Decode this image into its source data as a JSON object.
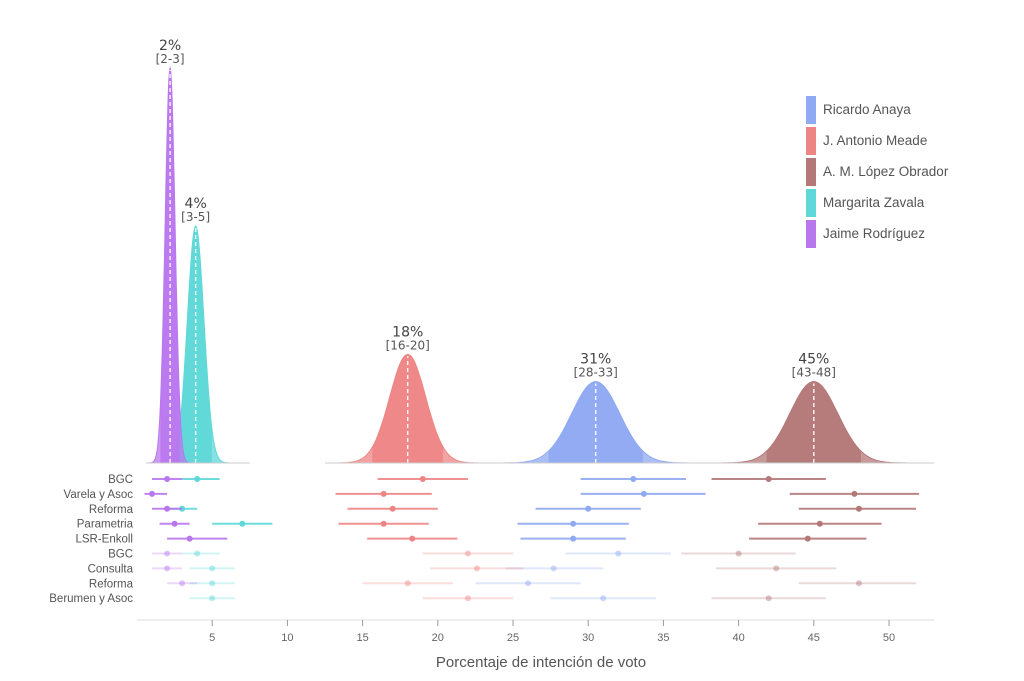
{
  "chart_data": {
    "type": "area",
    "xlabel": "Porcentaje de intención de voto",
    "xlim": [
      0,
      53
    ],
    "x_ticks": [
      5,
      10,
      15,
      20,
      25,
      30,
      35,
      40,
      45,
      50
    ],
    "candidates": [
      {
        "name": "Ricardo Anaya",
        "color": "#8fa9f2",
        "mean": 30.5,
        "sd": 1.6,
        "peak_label": "31%",
        "interval_label": "[28-33]",
        "interval": [
          28,
          33
        ]
      },
      {
        "name": "J. Antonio Meade",
        "color": "#ee8585",
        "mean": 18,
        "sd": 1.2,
        "peak_label": "18%",
        "interval_label": "[16-20]",
        "interval": [
          16,
          20
        ]
      },
      {
        "name": "A. M. López Obrador",
        "color": "#b47878",
        "mean": 45,
        "sd": 1.6,
        "peak_label": "45%",
        "interval_label": "[43-48]",
        "interval": [
          43,
          48
        ]
      },
      {
        "name": "Margarita Zavala",
        "color": "#5ed8d8",
        "mean": 3.9,
        "sd": 0.55,
        "peak_label": "4%",
        "interval_label": "[3-5]",
        "interval": [
          3,
          5
        ]
      },
      {
        "name": "Jaime Rodríguez",
        "color": "#b977ee",
        "mean": 2.2,
        "sd": 0.33,
        "peak_label": "2%",
        "interval_label": "[2-3]",
        "interval": [
          2,
          3
        ]
      }
    ],
    "polls": [
      {
        "name": "BGC",
        "faded": false,
        "estimates": {
          "Ricardo Anaya": [
            29.5,
            33,
            36.5
          ],
          "J. Antonio Meade": [
            16,
            19,
            22
          ],
          "A. M. López Obrador": [
            38.2,
            42,
            45.8
          ],
          "Margarita Zavala": [
            3,
            4,
            5.5
          ],
          "Jaime Rodríguez": [
            1,
            2,
            3
          ]
        }
      },
      {
        "name": "Varela y Asoc",
        "faded": false,
        "estimates": {
          "Ricardo Anaya": [
            29.5,
            33.7,
            37.8
          ],
          "J. Antonio Meade": [
            13.2,
            16.4,
            19.6
          ],
          "A. M. López Obrador": [
            43.4,
            47.7,
            52
          ],
          "Margarita Zavala": [],
          "Jaime Rodríguez": [
            0.5,
            1,
            2
          ]
        }
      },
      {
        "name": "Reforma",
        "faded": false,
        "estimates": {
          "Ricardo Anaya": [
            26.5,
            30,
            33.5
          ],
          "J. Antonio Meade": [
            14,
            17,
            20
          ],
          "A. M. López Obrador": [
            44,
            48,
            51.8
          ],
          "Margarita Zavala": [
            2,
            3,
            4
          ],
          "Jaime Rodríguez": [
            1,
            2,
            3
          ]
        }
      },
      {
        "name": "Parametria",
        "faded": false,
        "estimates": {
          "Ricardo Anaya": [
            25.3,
            29,
            32.7
          ],
          "J. Antonio Meade": [
            13.4,
            16.4,
            19.4
          ],
          "A. M. López Obrador": [
            41.3,
            45.4,
            49.5
          ],
          "Margarita Zavala": [
            5,
            7,
            9
          ],
          "Jaime Rodríguez": [
            1.5,
            2.5,
            3.5
          ]
        }
      },
      {
        "name": "LSR-Enkoll",
        "faded": false,
        "estimates": {
          "Ricardo Anaya": [
            25.5,
            29,
            32.5
          ],
          "J. Antonio Meade": [
            15.3,
            18.3,
            21.3
          ],
          "A. M. López Obrador": [
            40.7,
            44.6,
            48.5
          ],
          "Margarita Zavala": [],
          "Jaime Rodríguez": [
            2,
            3.5,
            6
          ]
        }
      },
      {
        "name": "BGC",
        "faded": true,
        "estimates": {
          "Ricardo Anaya": [
            28.5,
            32,
            35.5
          ],
          "J. Antonio Meade": [
            19,
            22,
            25
          ],
          "A. M. López Obrador": [
            36.2,
            40,
            43.8
          ],
          "Margarita Zavala": [
            3,
            4,
            5.5
          ],
          "Jaime Rodríguez": [
            1,
            2,
            3
          ]
        }
      },
      {
        "name": "Consulta",
        "faded": true,
        "estimates": {
          "Ricardo Anaya": [
            24.5,
            27.7,
            31
          ],
          "J. Antonio Meade": [
            19.5,
            22.6,
            25.7
          ],
          "A. M. López Obrador": [
            38.5,
            42.5,
            46.5
          ],
          "Margarita Zavala": [
            3.5,
            5,
            6.5
          ],
          "Jaime Rodríguez": [
            1,
            2,
            3
          ]
        }
      },
      {
        "name": "Reforma",
        "faded": true,
        "estimates": {
          "Ricardo Anaya": [
            22.5,
            26,
            29.5
          ],
          "J. Antonio Meade": [
            15,
            18,
            21
          ],
          "A. M. López Obrador": [
            44,
            48,
            51.8
          ],
          "Margarita Zavala": [
            3.5,
            5,
            6.5
          ],
          "Jaime Rodríguez": [
            2,
            3,
            4
          ]
        }
      },
      {
        "name": "Berumen y Asoc",
        "faded": true,
        "estimates": {
          "Ricardo Anaya": [
            27.5,
            31,
            34.5
          ],
          "J. Antonio Meade": [
            19,
            22,
            25
          ],
          "A. M. López Obrador": [
            38.2,
            42,
            45.8
          ],
          "Margarita Zavala": [
            3.5,
            5,
            6.5
          ],
          "Jaime Rodríguez": []
        }
      }
    ]
  }
}
